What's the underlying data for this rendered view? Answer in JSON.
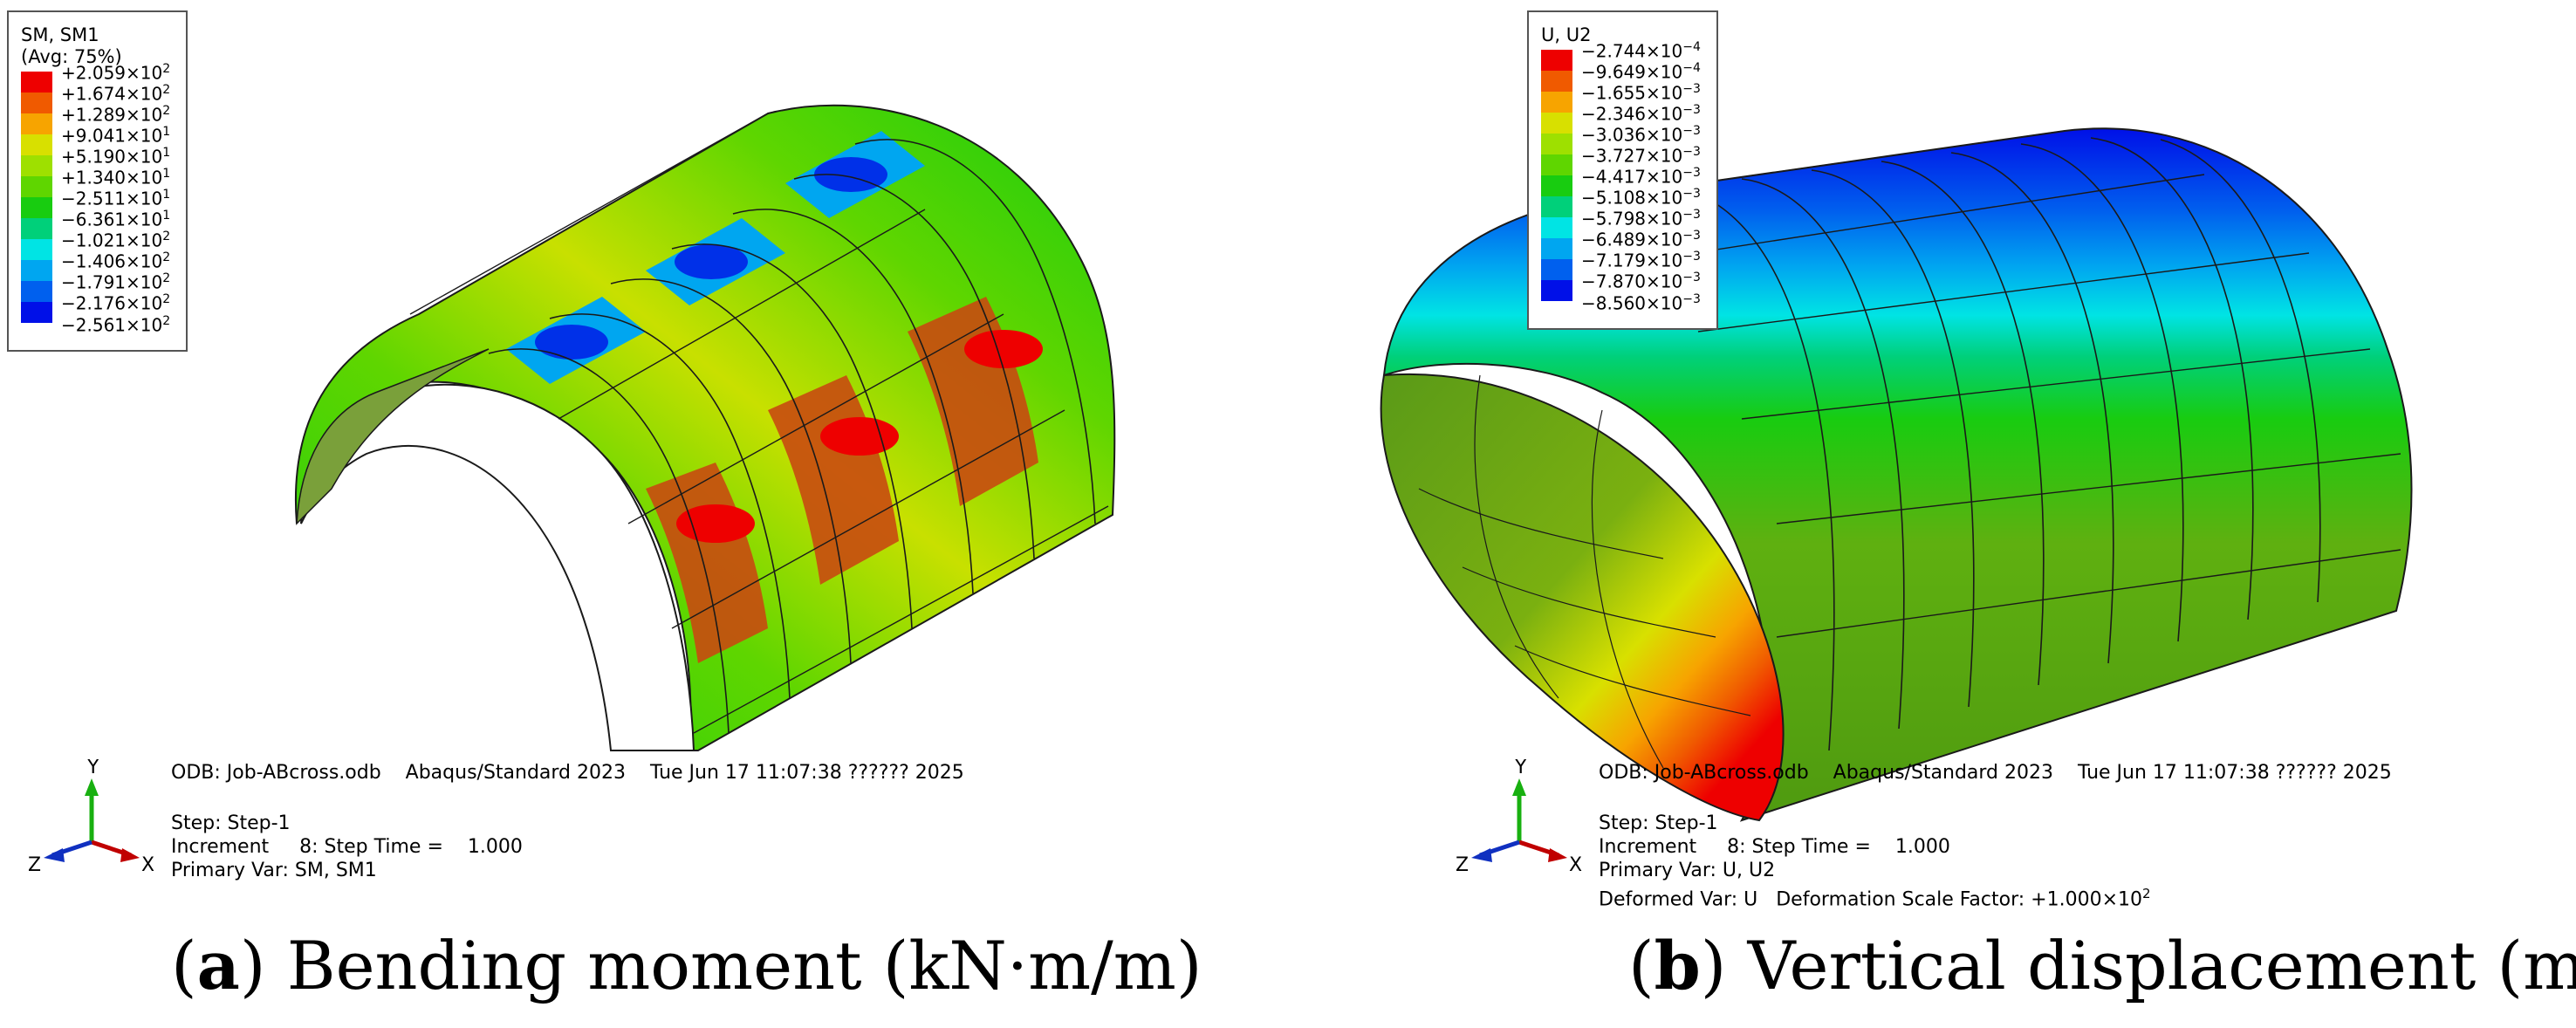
{
  "panel_a": {
    "legend": {
      "title_line1": "SM, SM1",
      "title_line2": "(Avg: 75%)",
      "entries": [
        {
          "value": "+2.059×10",
          "exp": "2",
          "color": "#ee0000"
        },
        {
          "value": "+1.674×10",
          "exp": "2",
          "color": "#f05a00"
        },
        {
          "value": "+1.289×10",
          "exp": "2",
          "color": "#f7a400"
        },
        {
          "value": "+9.041×10",
          "exp": "1",
          "color": "#d8e000"
        },
        {
          "value": "+5.190×10",
          "exp": "1",
          "color": "#9ee000"
        },
        {
          "value": "+1.340×10",
          "exp": "1",
          "color": "#5fd600"
        },
        {
          "value": "−2.511×10",
          "exp": "1",
          "color": "#18cc10"
        },
        {
          "value": "−6.361×10",
          "exp": "1",
          "color": "#00d07a"
        },
        {
          "value": "−1.021×10",
          "exp": "2",
          "color": "#00e4e4"
        },
        {
          "value": "−1.406×10",
          "exp": "2",
          "color": "#00a6f0"
        },
        {
          "value": "−1.791×10",
          "exp": "2",
          "color": "#0060ee"
        },
        {
          "value": "−2.176×10",
          "exp": "2",
          "color": "#0010e8"
        }
      ],
      "last_value": "−2.561×10",
      "last_exp": "2"
    },
    "info": {
      "odb_line": "ODB: Job-ABcross.odb    Abaqus/Standard 2023    Tue Jun 17 11:07:38 ?????? 2025",
      "step": "Step: Step-1",
      "increment": "Increment     8: Step Time =    1.000",
      "primary_var": "Primary Var: SM, SM1"
    },
    "triad": {
      "x": "X",
      "y": "Y",
      "z": "Z"
    },
    "caption": {
      "label": "a",
      "text": " Bending moment (kN·m/m)"
    }
  },
  "panel_b": {
    "legend": {
      "title_line1": "U, U2",
      "entries": [
        {
          "value": "−2.744×10",
          "exp": "−4",
          "color": "#ee0000"
        },
        {
          "value": "−9.649×10",
          "exp": "−4",
          "color": "#f05a00"
        },
        {
          "value": "−1.655×10",
          "exp": "−3",
          "color": "#f7a400"
        },
        {
          "value": "−2.346×10",
          "exp": "−3",
          "color": "#d8e000"
        },
        {
          "value": "−3.036×10",
          "exp": "−3",
          "color": "#9ee000"
        },
        {
          "value": "−3.727×10",
          "exp": "−3",
          "color": "#5fd600"
        },
        {
          "value": "−4.417×10",
          "exp": "−3",
          "color": "#18cc10"
        },
        {
          "value": "−5.108×10",
          "exp": "−3",
          "color": "#00d07a"
        },
        {
          "value": "−5.798×10",
          "exp": "−3",
          "color": "#00e4e4"
        },
        {
          "value": "−6.489×10",
          "exp": "−3",
          "color": "#00a6f0"
        },
        {
          "value": "−7.179×10",
          "exp": "−3",
          "color": "#0060ee"
        },
        {
          "value": "−7.870×10",
          "exp": "−3",
          "color": "#0010e8"
        }
      ],
      "last_value": "−8.560×10",
      "last_exp": "−3"
    },
    "info": {
      "odb_line": "ODB: Job-ABcross.odb    Abaqus/Standard 2023    Tue Jun 17 11:07:38 ?????? 2025",
      "step": "Step: Step-1",
      "increment": "Increment     8: Step Time =    1.000",
      "primary_var": "Primary Var: U, U2",
      "deformed_var": "Deformed Var: U   Deformation Scale Factor: +1.000×10",
      "deformed_exp": "2"
    },
    "triad": {
      "x": "X",
      "y": "Y",
      "z": "Z"
    },
    "caption": {
      "label": "b",
      "text": " Vertical displacement (m)"
    }
  }
}
